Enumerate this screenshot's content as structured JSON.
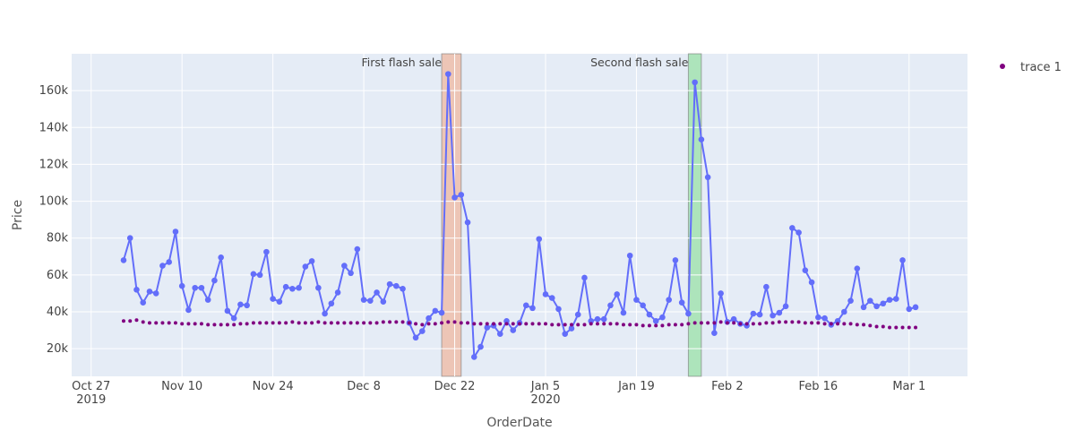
{
  "chart_data": {
    "type": "line",
    "xlabel": "OrderDate",
    "ylabel": "Price",
    "xlim": [
      "2019-10-24",
      "2020-03-10"
    ],
    "ylim": [
      5000,
      180000
    ],
    "x_ticks": [
      {
        "date": "2019-10-27",
        "label": "Oct 27",
        "sub": "2019"
      },
      {
        "date": "2019-11-10",
        "label": "Nov 10",
        "sub": ""
      },
      {
        "date": "2019-11-24",
        "label": "Nov 24",
        "sub": ""
      },
      {
        "date": "2019-12-08",
        "label": "Dec 8",
        "sub": ""
      },
      {
        "date": "2019-12-22",
        "label": "Dec 22",
        "sub": ""
      },
      {
        "date": "2020-01-05",
        "label": "Jan 5",
        "sub": "2020"
      },
      {
        "date": "2020-01-19",
        "label": "Jan 19",
        "sub": ""
      },
      {
        "date": "2020-02-02",
        "label": "Feb 2",
        "sub": ""
      },
      {
        "date": "2020-02-16",
        "label": "Feb 16",
        "sub": ""
      },
      {
        "date": "2020-03-01",
        "label": "Mar 1",
        "sub": ""
      }
    ],
    "y_ticks": [
      {
        "value": 20000,
        "label": "20k"
      },
      {
        "value": 40000,
        "label": "40k"
      },
      {
        "value": 60000,
        "label": "60k"
      },
      {
        "value": 80000,
        "label": "80k"
      },
      {
        "value": 100000,
        "label": "100k"
      },
      {
        "value": 120000,
        "label": "120k"
      },
      {
        "value": 140000,
        "label": "140k"
      },
      {
        "value": 160000,
        "label": "160k"
      }
    ],
    "grid": true,
    "legend_position": "top-right",
    "colors": {
      "plot_bg": "#e5ecf6",
      "grid": "#ffffff",
      "line": "#636efa",
      "trend": "#800080",
      "first_band": "#f4a582",
      "second_band": "#7fdf8a"
    },
    "annotations": [
      {
        "text": "First flash sale",
        "x0": "2019-12-20",
        "x1": "2019-12-23",
        "color": "first_band"
      },
      {
        "text": "Second flash sale",
        "x0": "2020-01-27",
        "x1": "2020-01-29",
        "color": "second_band"
      }
    ],
    "start_date": "2019-11-01",
    "series": [
      {
        "values": [
          68000,
          80000,
          52000,
          45000,
          51000,
          50000,
          65000,
          67000,
          83500,
          54000,
          41000,
          53000,
          53000,
          46500,
          57000,
          69500,
          40500,
          36500,
          44000,
          43500,
          60500,
          60000,
          72500,
          47000,
          45500,
          53500,
          52500,
          53000,
          64500,
          67500,
          53000,
          39000,
          44500,
          50500,
          65000,
          61000,
          74000,
          46500,
          46000,
          50500,
          45500,
          55000,
          54000,
          52500,
          34000,
          26000,
          29500,
          36500,
          40500,
          39500,
          169000,
          102000,
          103500,
          88500,
          15500,
          21000,
          31500,
          32500,
          28000,
          35000,
          30000,
          34000,
          43500,
          42000,
          79500,
          49500,
          47500,
          41500,
          28000,
          31000,
          38500,
          58500,
          35000,
          36000,
          36000,
          43500,
          49500,
          39500,
          70500,
          46500,
          43500,
          38500,
          35000,
          37000,
          46500,
          68000,
          45000,
          39000,
          164500,
          133500,
          113000,
          28500,
          50000,
          34500,
          36000,
          33500,
          32500,
          39000,
          38500,
          53500,
          38000,
          39500,
          43000,
          85500,
          83000,
          62500,
          56000,
          37000,
          36500,
          33000,
          35000,
          40000,
          46000,
          63500,
          42500,
          46000,
          43000,
          44500,
          46500,
          47000,
          68000,
          41500,
          42500
        ]
      },
      {
        "name": "trace 1",
        "values": [
          35000,
          35000,
          35500,
          34500,
          34000,
          34000,
          34000,
          34000,
          34000,
          33500,
          33500,
          33500,
          33500,
          33000,
          33000,
          33000,
          33000,
          33000,
          33500,
          33500,
          34000,
          34000,
          34000,
          34000,
          34000,
          34000,
          34500,
          34000,
          34000,
          34000,
          34500,
          34000,
          34000,
          34000,
          34000,
          34000,
          34000,
          34000,
          34000,
          34000,
          34500,
          34500,
          34500,
          34500,
          34000,
          33500,
          33000,
          33500,
          33500,
          34000,
          34500,
          34500,
          34000,
          34000,
          33500,
          33500,
          33500,
          33500,
          33500,
          33500,
          33500,
          33500,
          33500,
          33500,
          33500,
          33500,
          33000,
          33000,
          33000,
          33000,
          33000,
          33000,
          33500,
          33500,
          33500,
          33500,
          33500,
          33000,
          33000,
          33000,
          32500,
          32500,
          32500,
          32500,
          33000,
          33000,
          33000,
          33500,
          34000,
          34000,
          34000,
          34000,
          34500,
          34000,
          34000,
          33500,
          33500,
          33500,
          33500,
          34000,
          34000,
          34500,
          34500,
          34500,
          34500,
          34000,
          34000,
          34000,
          33500,
          33500,
          33500,
          33500,
          33500,
          33000,
          33000,
          32500,
          32000,
          32000,
          31500,
          31500,
          31500,
          31500,
          31500
        ]
      }
    ]
  }
}
